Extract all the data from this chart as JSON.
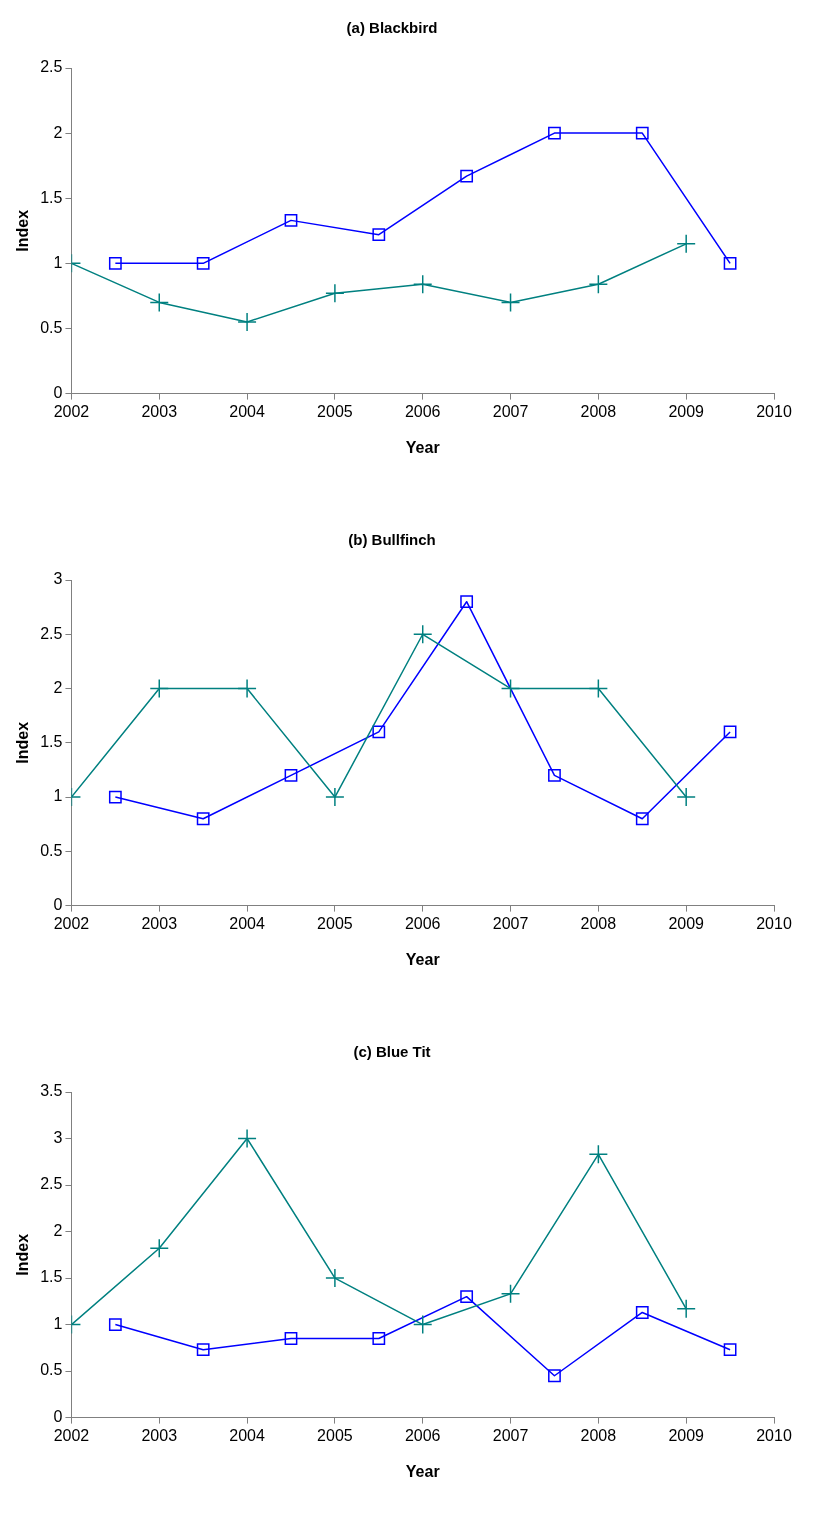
{
  "chart_data": [
    {
      "type": "line",
      "title": "(a) Blackbird",
      "xlabel": "Year",
      "ylabel": "Index",
      "xlim": [
        2002,
        2010
      ],
      "xticks": [
        2002,
        2003,
        2004,
        2005,
        2006,
        2007,
        2008,
        2009,
        2010
      ],
      "ylim": [
        0,
        2.5
      ],
      "yticks": [
        0,
        0.5,
        1,
        1.5,
        2,
        2.5
      ],
      "grid": false,
      "legend": false,
      "series": [
        {
          "color": "#008080",
          "marker": "cross",
          "x": [
            2002,
            2003,
            2004,
            2005,
            2006,
            2007,
            2008,
            2009
          ],
          "values": [
            1,
            0.7,
            0.55,
            0.77,
            0.84,
            0.7,
            0.84,
            1.15
          ]
        },
        {
          "color": "#0000ff",
          "marker": "square",
          "x": [
            2002.5,
            2003.5,
            2004.5,
            2005.5,
            2006.5,
            2007.5,
            2008.5,
            2009.5
          ],
          "values": [
            1,
            1,
            1.33,
            1.22,
            1.67,
            2,
            2,
            1
          ]
        }
      ]
    },
    {
      "type": "line",
      "title": "(b) Bullfinch",
      "xlabel": "Year",
      "ylabel": "Index",
      "xlim": [
        2002,
        2010
      ],
      "xticks": [
        2002,
        2003,
        2004,
        2005,
        2006,
        2007,
        2008,
        2009,
        2010
      ],
      "ylim": [
        0,
        3
      ],
      "yticks": [
        0,
        0.5,
        1,
        1.5,
        2,
        2.5,
        3
      ],
      "grid": false,
      "legend": false,
      "series": [
        {
          "color": "#008080",
          "marker": "cross",
          "x": [
            2002,
            2003,
            2004,
            2005,
            2006,
            2007,
            2008,
            2009
          ],
          "values": [
            1,
            2,
            2,
            1,
            2.5,
            2,
            2,
            1
          ]
        },
        {
          "color": "#0000ff",
          "marker": "square",
          "x": [
            2002.5,
            2003.5,
            2004.5,
            2005.5,
            2006.5,
            2007.5,
            2008.5,
            2009.5
          ],
          "values": [
            1,
            0.8,
            1.2,
            1.6,
            2.8,
            1.2,
            0.8,
            1.6
          ]
        }
      ]
    },
    {
      "type": "line",
      "title": "(c) Blue Tit",
      "xlabel": "Year",
      "ylabel": "Index",
      "xlim": [
        2002,
        2010
      ],
      "xticks": [
        2002,
        2003,
        2004,
        2005,
        2006,
        2007,
        2008,
        2009,
        2010
      ],
      "ylim": [
        0,
        3.5
      ],
      "yticks": [
        0,
        0.5,
        1,
        1.5,
        2,
        2.5,
        3,
        3.5
      ],
      "grid": false,
      "legend": false,
      "series": [
        {
          "color": "#008080",
          "marker": "cross",
          "x": [
            2002,
            2003,
            2004,
            2005,
            2006,
            2007,
            2008,
            2009
          ],
          "values": [
            1,
            1.82,
            3,
            1.5,
            1,
            1.33,
            2.83,
            1.17
          ]
        },
        {
          "color": "#0000ff",
          "marker": "square",
          "x": [
            2002.5,
            2003.5,
            2004.5,
            2005.5,
            2006.5,
            2007.5,
            2008.5,
            2009.5
          ],
          "values": [
            1,
            0.73,
            0.85,
            0.85,
            1.3,
            0.45,
            1.13,
            0.73
          ]
        }
      ]
    }
  ]
}
